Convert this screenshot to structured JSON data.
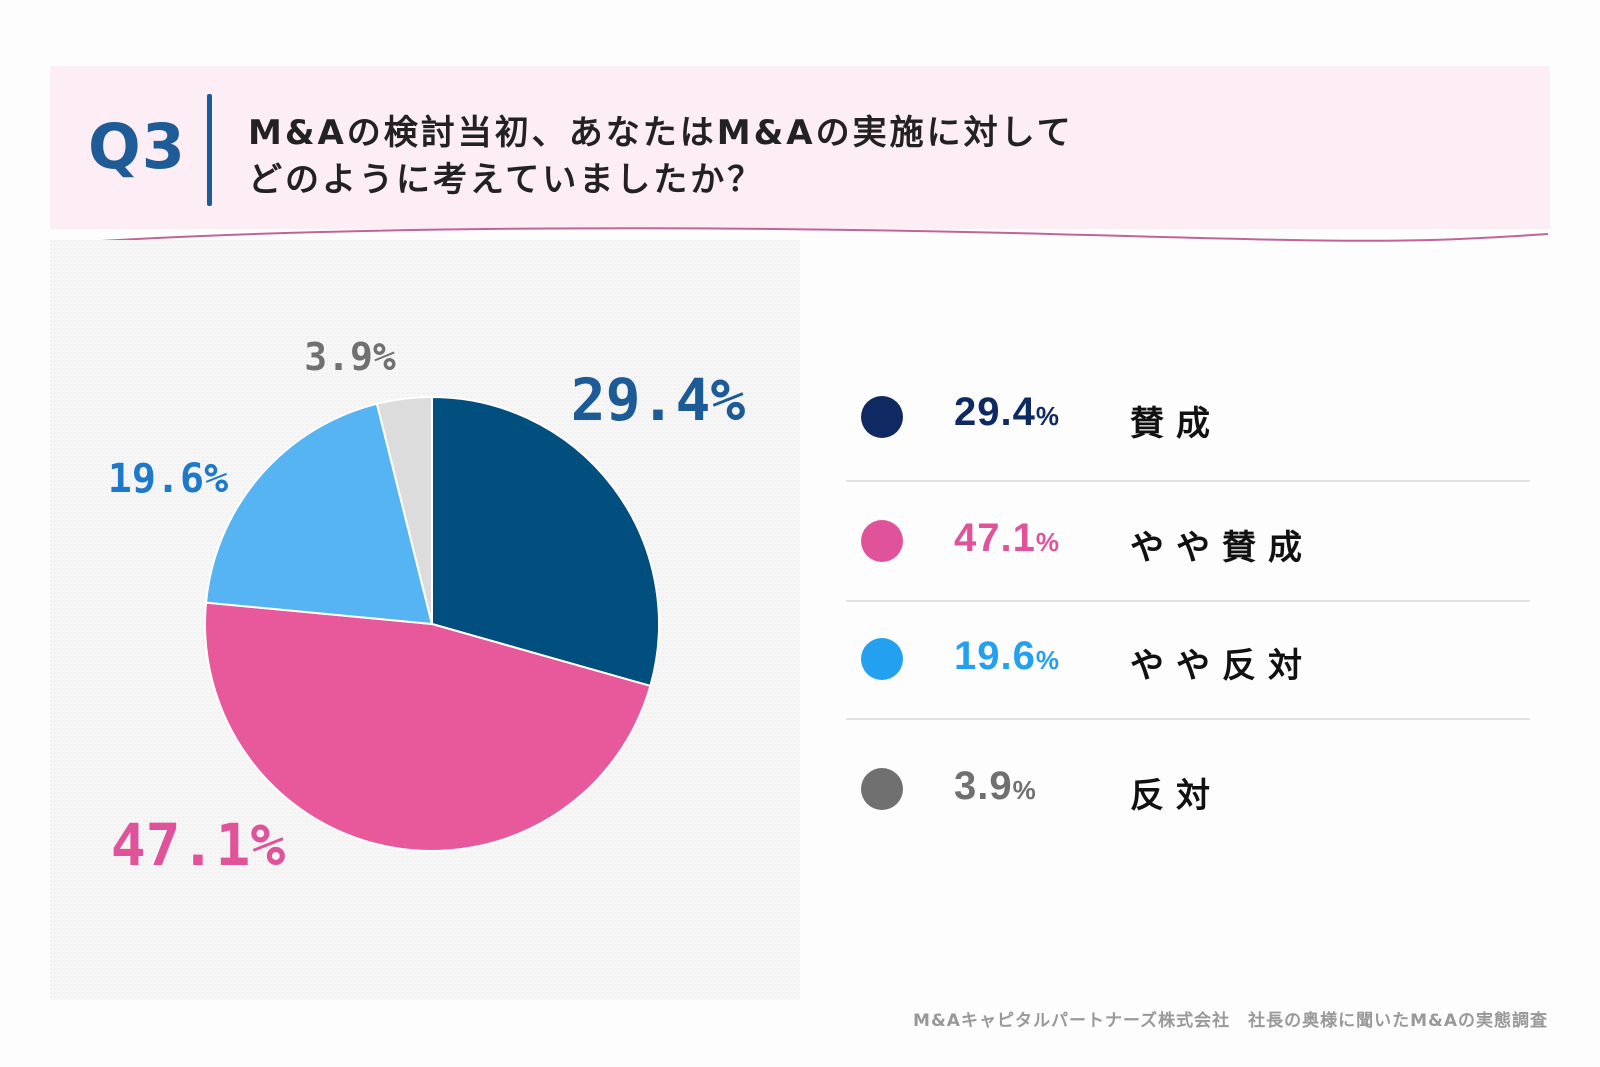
{
  "header": {
    "question_number": "Q3",
    "question_line1": "M&Aの検討当初、あなたはM&Aの実施に対して",
    "question_line2": "どのように考えていましたか？"
  },
  "chart_data": {
    "type": "pie",
    "categories": [
      "賛成",
      "やや賛成",
      "やや反対",
      "反対"
    ],
    "values": [
      29.4,
      47.1,
      19.6,
      3.9
    ],
    "value_labels": [
      "29.4%",
      "47.1%",
      "19.6%",
      "3.9%"
    ],
    "colors": [
      "#004f7e",
      "#e8599b",
      "#56b4f2",
      "#dcdcdc"
    ],
    "label_colors": [
      "#1c5b96",
      "#e0539a",
      "#1f79c9",
      "#707070"
    ],
    "start_angle_deg": 0,
    "direction": "clockwise",
    "legend_position": "right"
  },
  "legend": {
    "items": [
      {
        "value": "29.4",
        "unit": "%",
        "label": "賛成",
        "dot_color": "#0f2a63",
        "value_color": "#0f2a63"
      },
      {
        "value": "47.1",
        "unit": "%",
        "label": "やや賛成",
        "dot_color": "#e0539a",
        "value_color": "#e0539a"
      },
      {
        "value": "19.6",
        "unit": "%",
        "label": "やや反対",
        "dot_color": "#24a0f0",
        "value_color": "#24a0f0"
      },
      {
        "value": "3.9",
        "unit": "%",
        "label": "反対",
        "dot_color": "#707070",
        "value_color": "#707070"
      }
    ]
  },
  "footer": {
    "source": "M&Aキャピタルパートナーズ株式会社　社長の奥様に聞いたM&Aの実態調査"
  }
}
